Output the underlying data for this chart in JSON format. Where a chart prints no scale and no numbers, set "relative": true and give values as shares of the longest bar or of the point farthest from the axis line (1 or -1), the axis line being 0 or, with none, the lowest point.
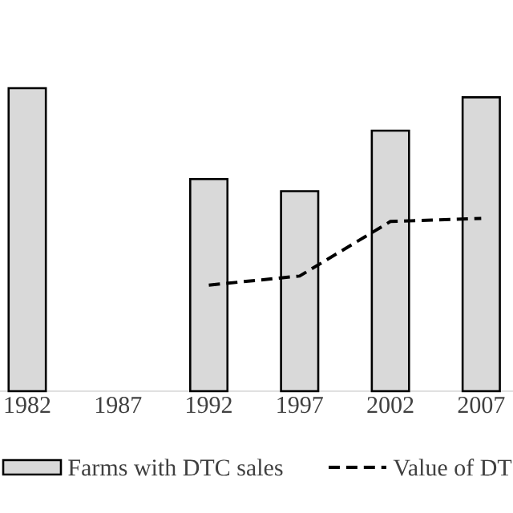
{
  "chart_data": {
    "type": "bar",
    "relative": true,
    "legend": "bottom",
    "categories": [
      "1982",
      "1987",
      "1992",
      "1997",
      "2002",
      "2007"
    ],
    "series": [
      {
        "name": "Farms with DTC sales",
        "color": "#d9d9d9",
        "values": [
          1,
          null,
          0.7,
          0.66,
          0.86,
          0.97
        ]
      },
      {
        "name": "Value of DT",
        "type": "line",
        "color": "#000000",
        "line_style": "dashed",
        "values": [
          null,
          null,
          0.35,
          0.38,
          0.56,
          0.57
        ]
      }
    ]
  }
}
